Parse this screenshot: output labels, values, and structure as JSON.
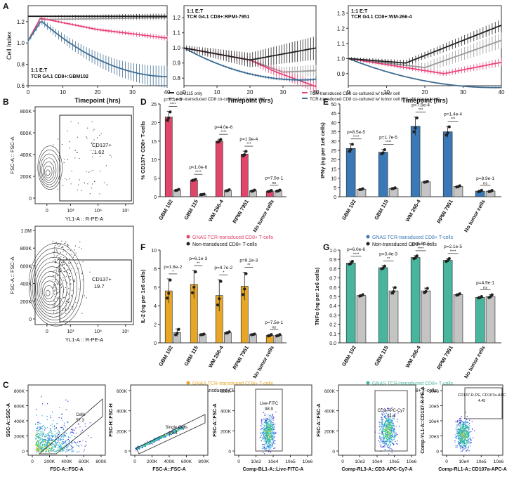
{
  "panel_letters": {
    "A": "A",
    "B": "B",
    "C": "C",
    "D": "D",
    "E": "E",
    "F": "F",
    "G": "G"
  },
  "cell_index_panels": [
    {
      "title1": "1:1 E:T",
      "title2": "TCR G4.1 CD8+:GBM102",
      "ylabel": "Cell Index",
      "xlabel": "Timepoint (hrs)",
      "xticks": [
        "0",
        "10",
        "20",
        "30",
        "40"
      ],
      "yticks": [
        "0.6",
        "0.8",
        "1.0",
        "1.2"
      ]
    },
    {
      "title1": "1:1 E:T",
      "title2": "TCR G4.1 CD8+:RPMI-7951",
      "ylabel": "",
      "xlabel": "Timepoint (hrs)",
      "xticks": [
        "0",
        "10",
        "20",
        "30",
        "40"
      ],
      "yticks": [
        "0.8",
        "0.9",
        "1.0",
        "1.1",
        "1.2"
      ]
    },
    {
      "title1": "1:1 E:T",
      "title2": "TCR G4.1 CD8+:WM-266-4",
      "ylabel": "",
      "xlabel": "Timepoint (hrs)",
      "xticks": [
        "0",
        "10",
        "20",
        "30",
        "40"
      ],
      "yticks": [
        "0.9",
        "1.0",
        "1.1",
        "1.2",
        "1.3"
      ]
    }
  ],
  "panel_a_legend": [
    "GBM115 only",
    "non-transduced CD8 co-cultured w/ tumor cell",
    "TCR-transduced CD8 co-cultured w/ tumor cell",
    "TCR-transduced CD8 co-cultured w/ tumor cell (0.1 uM pep-pulsed)"
  ],
  "colors": {
    "black": "#222222",
    "grey": "#9a9a9a",
    "pink": "#e8457a",
    "blue": "#3f6d93",
    "red_bar": "#e0466a",
    "blue_bar": "#3a78b6",
    "orange_bar": "#e6a626",
    "teal_bar": "#48b59c",
    "grey_bar": "#c4c4c4"
  },
  "panel_b": [
    {
      "ylabel": "FSC-A :: FSC-A",
      "xlabel": "YL1-A :: R-PE-A",
      "gate_label": "CD137+",
      "gate_value": "1.62",
      "yticks": [
        "800K",
        "600K",
        "400K",
        "200K",
        "0"
      ],
      "xticks": [
        "0",
        "10³",
        "10⁴",
        "10⁵"
      ]
    },
    {
      "ylabel": "FSC-A :: FSC-A",
      "xlabel": "YL1-A :: R-PE-A",
      "gate_label": "CD137+",
      "gate_value": "19.7",
      "yticks": [
        "1.0M",
        "800K",
        "600K",
        "400K",
        "200K",
        "0"
      ],
      "xticks": [
        "0",
        "10³",
        "10⁴",
        "10⁵"
      ]
    }
  ],
  "bar_panels": [
    {
      "ylabel": "% CD137+ CD8+ T-cells",
      "yticks": [
        "0",
        "5",
        "10",
        "15",
        "20",
        "25"
      ],
      "ymax": 25,
      "categories": [
        "GBM 102",
        "GBM 115",
        "WM 266-4",
        "RPMI 7951",
        "No tumor cells"
      ],
      "pvalues": [
        "p=6.1e-5",
        "p<1.0e-6",
        "p=4.0e-6",
        "p=1.9e-4",
        "p=7.5e-1"
      ],
      "stars": [
        "****",
        "****",
        "****",
        "***",
        "ns"
      ],
      "legend": [
        "GNAS TCR-transduced CD8+ T-cells",
        "Non-transduced CD8+ T-cells"
      ]
    },
    {
      "ylabel": "IFNγ (ng per 1e6 cells)",
      "yticks": [
        "0",
        "5",
        "10",
        "15",
        "20",
        "25",
        "30",
        "35",
        "40",
        "45",
        "50"
      ],
      "ymax": 50,
      "categories": [
        "GBM 102",
        "GBM 115",
        "WM 266-4",
        "RPMI 7951",
        "No tumor cells"
      ],
      "pvalues": [
        "p=8.5e-5",
        "p=1.7e-5",
        "p=7.5e-4",
        "p=1.4e-4",
        "p=8.9e-1"
      ],
      "stars": [
        "****",
        "****",
        "***",
        "***",
        "ns"
      ],
      "legend": [
        "GNAS TCR-transduced CD8+ T-cells",
        "Non-transduced CD8+ T-cells"
      ]
    },
    {
      "ylabel": "IL-2 (ng per 1e6 cells)",
      "yticks": [
        "0",
        "2",
        "4",
        "6",
        "8",
        "10"
      ],
      "ymax": 10,
      "categories": [
        "GBM 102",
        "GBM 115",
        "WM 266-4",
        "RPMI 7951",
        "No tumor cells"
      ],
      "pvalues": [
        "p=1.6e-2",
        "p=6.1e-3",
        "p=4.7e-2",
        "p=8.1e-3",
        "p=7.5e-1"
      ],
      "stars": [
        "*",
        "**",
        "*",
        "**",
        "ns"
      ],
      "legend": [
        "GNAS TCR-transduced CD8+ T-cells",
        "Non-transduced CD8+ T-cells"
      ]
    },
    {
      "ylabel": "TNFα (ng per 1e6 cells)",
      "yticks": [
        "0.0",
        "0.1",
        "0.2",
        "0.3",
        "0.4",
        "0.5",
        "0.6",
        "0.7",
        "0.8",
        "0.9",
        "1.0"
      ],
      "ymax": 1.0,
      "categories": [
        "GBM 102",
        "GBM 115",
        "WM 266-4",
        "RPMI 7951",
        "No tumor cells"
      ],
      "pvalues": [
        "p=6.0e-6",
        "p=3.4e-3",
        "p=8.6e-5",
        "p=2.1e-5",
        "p=4.9e-1"
      ],
      "stars": [
        "****",
        "**",
        "****",
        "****",
        "ns"
      ],
      "legend": [
        "GNAS TCR-transduced CD8+ T-cells",
        "Non-transduced CD8+ T-cells"
      ]
    }
  ],
  "chart_data": [
    {
      "type": "bar",
      "title": "",
      "ylabel": "% CD137+ CD8+ T-cells",
      "ylim": [
        0,
        25
      ],
      "categories": [
        "GBM 102",
        "GBM 115",
        "WM 266-4",
        "RPMI 7951",
        "No tumor cells"
      ],
      "series": [
        {
          "name": "GNAS TCR-transduced CD8+ T-cells",
          "values": [
            21.5,
            4.5,
            15.0,
            11.5,
            1.5
          ],
          "errors": [
            1.5,
            0.2,
            0.5,
            0.8,
            0.2
          ]
        },
        {
          "name": "Non-transduced CD8+ T-cells",
          "values": [
            1.8,
            0.6,
            1.7,
            1.6,
            1.6
          ],
          "errors": [
            0.2,
            0.1,
            0.2,
            0.2,
            0.2
          ]
        }
      ]
    },
    {
      "type": "bar",
      "title": "",
      "ylabel": "IFNγ (ng per 1e6 cells)",
      "ylim": [
        0,
        50
      ],
      "categories": [
        "GBM 102",
        "GBM 115",
        "WM 266-4",
        "RPMI 7951",
        "No tumor cells"
      ],
      "series": [
        {
          "name": "GNAS TCR-transduced CD8+ T-cells",
          "values": [
            26,
            24,
            38,
            35,
            3
          ],
          "errors": [
            2.5,
            1.5,
            5,
            3,
            0.5
          ]
        },
        {
          "name": "Non-transduced CD8+ T-cells",
          "values": [
            4,
            4.5,
            8,
            5.5,
            3
          ],
          "errors": [
            0.3,
            0.3,
            0.3,
            0.4,
            0.4
          ]
        }
      ]
    },
    {
      "type": "bar",
      "title": "",
      "ylabel": "IL-2 (ng per 1e6 cells)",
      "ylim": [
        0,
        10
      ],
      "categories": [
        "GBM 102",
        "GBM 115",
        "WM 266-4",
        "RPMI 7951",
        "No tumor cells"
      ],
      "series": [
        {
          "name": "GNAS TCR-transduced CD8+ T-cells",
          "values": [
            5.6,
            6.3,
            5.1,
            6.1,
            0.8
          ],
          "errors": [
            1.3,
            1.5,
            1.7,
            1.5,
            0.1
          ]
        },
        {
          "name": "Non-transduced CD8+ T-cells",
          "values": [
            1.1,
            0.9,
            1.1,
            0.9,
            0.8
          ],
          "errors": [
            0.4,
            0.05,
            0.1,
            0.05,
            0.1
          ]
        }
      ]
    },
    {
      "type": "bar",
      "title": "",
      "ylabel": "TNFα (ng per 1e6 cells)",
      "ylim": [
        0,
        1
      ],
      "categories": [
        "GBM 102",
        "GBM 115",
        "WM 266-4",
        "RPMI 7951",
        "No tumor cells"
      ],
      "series": [
        {
          "name": "GNAS TCR-transduced CD8+ T-cells",
          "values": [
            0.86,
            0.81,
            0.92,
            0.89,
            0.49
          ],
          "errors": [
            0.02,
            0.02,
            0.02,
            0.02,
            0.01
          ]
        },
        {
          "name": "Non-transduced CD8+ T-cells",
          "values": [
            0.51,
            0.56,
            0.56,
            0.52,
            0.5
          ],
          "errors": [
            0.01,
            0.04,
            0.03,
            0.01,
            0.02
          ]
        }
      ]
    }
  ],
  "panel_c": [
    {
      "ylabel": "SSC-A::SSC-A",
      "xlabel": "FSC-A::FSC-A",
      "gate_label": "Cells",
      "gate_value": "57.3",
      "yticks": [
        "800K",
        "600K",
        "400K",
        "200K",
        "0"
      ],
      "xticks": [
        "0",
        "200K",
        "400K",
        "600K",
        "800K"
      ]
    },
    {
      "ylabel": "FSC-H::FSC-H",
      "xlabel": "FSC-A::FSC-A",
      "gate_label": "Single Cells",
      "gate_value": "81.4",
      "yticks": [
        "600K",
        "400K",
        "200K",
        "0"
      ],
      "xticks": [
        "0",
        "200K",
        "400K",
        "600K",
        "800K"
      ]
    },
    {
      "ylabel": "FSC-A::FSC-A",
      "xlabel": "Comp-BL1-A::Live-FITC-A",
      "gate_label": "Live-FITC",
      "gate_value": "98.9",
      "yticks": [
        "600K",
        "400K",
        "200K",
        "0"
      ],
      "xticks": [
        "0",
        "10e3",
        "10e4",
        "10e5",
        "10e6"
      ]
    },
    {
      "ylabel": "FSC-A::FSC-A",
      "xlabel": "Comp-RL3-A::CD3-APC-Cy7-A",
      "gate_label": "CD3-APC-Cy7",
      "gate_value": "91.4",
      "yticks": [
        "600K",
        "400K",
        "200K",
        "0"
      ],
      "xticks": [
        "0",
        "10e3",
        "10e4",
        "10e5",
        "10e6"
      ]
    },
    {
      "ylabel": "Comp-YL1-A::CD137-R-PE-A",
      "xlabel": "Comp-RL1-A::CD107a-APC-A",
      "gate_label": "CD137-R-PE, CD107a-APC",
      "gate_value": "4.45",
      "yticks": [
        "10e6",
        "10e5",
        "10e4",
        "10e3",
        "0"
      ],
      "xticks": [
        "0",
        "10e4",
        "10e5",
        "10e6"
      ]
    }
  ]
}
